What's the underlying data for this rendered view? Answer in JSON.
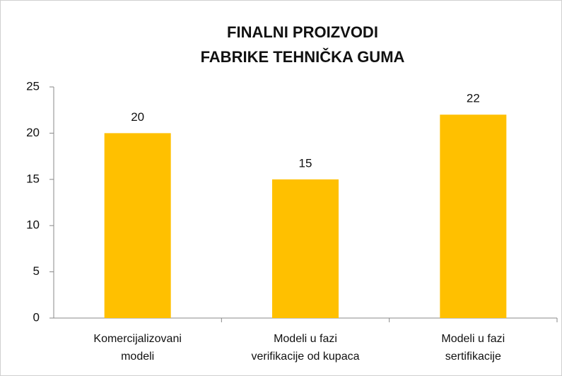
{
  "chart_data": {
    "type": "bar",
    "title": [
      "FINALNI PROIZVODI",
      "FABRIKE TEHNIČKA GUMA"
    ],
    "categories": [
      [
        "Komercijalizovani",
        "modeli"
      ],
      [
        "Modeli u fazi",
        "verifikacije od kupaca"
      ],
      [
        "Modeli u fazi",
        "sertifikacije"
      ]
    ],
    "values": [
      20,
      15,
      22
    ],
    "color": "#ffc000",
    "ylim": [
      0,
      25
    ],
    "yticks": [
      0,
      5,
      10,
      15,
      20,
      25
    ],
    "grid": false
  }
}
